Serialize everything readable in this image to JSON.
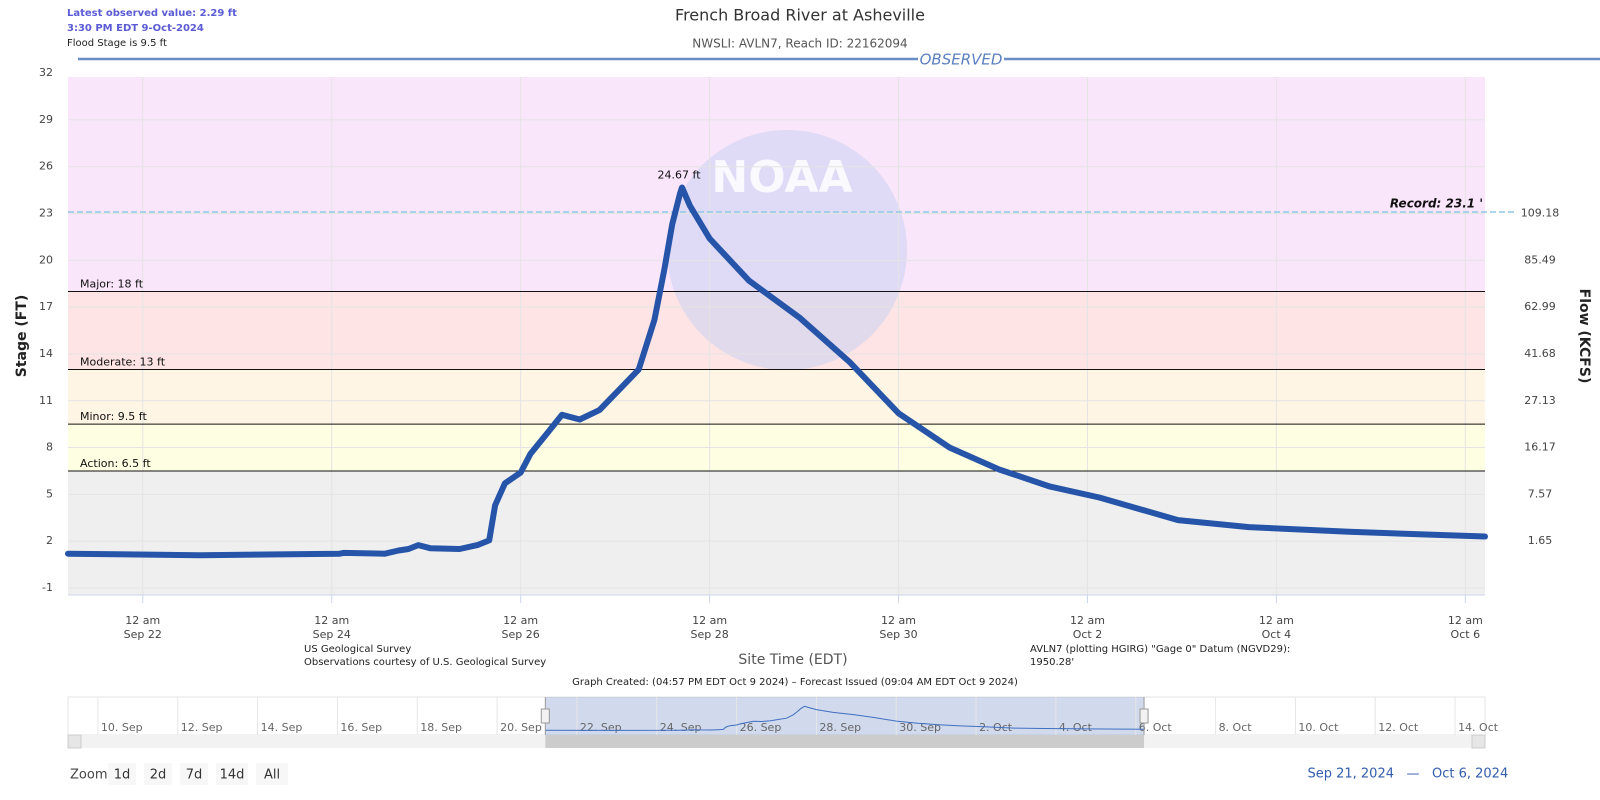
{
  "header": {
    "latest": "Latest observed value: 2.29 ft",
    "latest_time": "3:30 PM EDT 9-Oct-2024",
    "flood_stage": "Flood Stage is 9.5 ft"
  },
  "chart_data": {
    "type": "line",
    "title": "French Broad River at Asheville",
    "subtitle": "NWSLI: AVLN7, Reach ID: 22162094",
    "section_label": "OBSERVED",
    "watermark": "NOAA",
    "y_label": "Stage (FT)",
    "y2_label": "Flow (KCFS)",
    "x_label": "Site Time (EDT)",
    "ylim": [
      -1.45,
      31.75
    ],
    "yticks": [
      -1,
      2,
      5,
      8,
      11,
      14,
      17,
      20,
      23,
      26,
      29,
      32
    ],
    "y2ticks": [
      1.65,
      7.57,
      16.17,
      27.13,
      41.68,
      62.99,
      85.49,
      109.18
    ],
    "y2tick_stage": [
      2,
      5,
      8,
      11,
      14,
      17,
      20,
      23
    ],
    "xlim": [
      "2024-09-21 05:00",
      "2024-10-06 05:00"
    ],
    "xticks": [
      {
        "value": "2024-09-22 00:00",
        "label": "12 am",
        "date": "Sep 22"
      },
      {
        "value": "2024-09-24 00:00",
        "label": "12 am",
        "date": "Sep 24"
      },
      {
        "value": "2024-09-26 00:00",
        "label": "12 am",
        "date": "Sep 26"
      },
      {
        "value": "2024-09-28 00:00",
        "label": "12 am",
        "date": "Sep 28"
      },
      {
        "value": "2024-09-30 00:00",
        "label": "12 am",
        "date": "Sep 30"
      },
      {
        "value": "2024-10-02 00:00",
        "label": "12 am",
        "date": "Oct 2"
      },
      {
        "value": "2024-10-04 00:00",
        "label": "12 am",
        "date": "Oct 4"
      },
      {
        "value": "2024-10-06 00:00",
        "label": "12 am",
        "date": "Oct 6"
      }
    ],
    "grid": true,
    "below_color": "#efefef",
    "flood_levels": [
      {
        "label": "Action: 6.5 ft",
        "value": 6.5,
        "color": "#fefee2"
      },
      {
        "label": "Minor: 9.5 ft",
        "value": 9.5,
        "color": "#fef5e4"
      },
      {
        "label": "Moderate: 13 ft",
        "value": 13,
        "color": "#fee4e4"
      },
      {
        "label": "Major: 18 ft",
        "value": 18,
        "color": "#fae6fb"
      }
    ],
    "record": {
      "label": "Record: 23.1 '",
      "value": 23.1,
      "color": "#8ecae6"
    },
    "x": [
      "2024-09-21 05:00",
      "2024-09-22 14:30",
      "2024-09-24 02:00",
      "2024-09-24 03:00",
      "2024-09-24 13:30",
      "2024-09-24 17:00",
      "2024-09-24 19:30",
      "2024-09-24 22:00",
      "2024-09-25 01:00",
      "2024-09-25 08:30",
      "2024-09-25 13:00",
      "2024-09-25 16:00",
      "2024-09-25 17:30",
      "2024-09-25 20:00",
      "2024-09-26 00:00",
      "2024-09-26 02:30",
      "2024-09-26 07:00",
      "2024-09-26 10:30",
      "2024-09-26 15:00",
      "2024-09-26 20:00",
      "2024-09-27 01:00",
      "2024-09-27 06:00",
      "2024-09-27 10:00",
      "2024-09-27 12:30",
      "2024-09-27 14:30",
      "2024-09-27 16:30",
      "2024-09-27 17:00",
      "2024-09-27 19:00",
      "2024-09-28 00:00",
      "2024-09-28 10:00",
      "2024-09-28 23:00",
      "2024-09-29 11:30",
      "2024-09-30 00:00",
      "2024-09-30 13:00",
      "2024-10-01 01:30",
      "2024-10-01 14:30",
      "2024-10-02 03:00",
      "2024-10-02 23:00",
      "2024-10-03 17:00",
      "2024-10-04 18:30",
      "2024-10-06 05:00"
    ],
    "series": [
      {
        "name": "Observed",
        "color": "#2654a8",
        "values": [
          1.2,
          1.1,
          1.2,
          1.25,
          1.2,
          1.4,
          1.5,
          1.75,
          1.55,
          1.5,
          1.75,
          2.05,
          4.3,
          5.7,
          6.4,
          7.6,
          9.0,
          10.1,
          9.8,
          10.4,
          11.7,
          13.0,
          16.2,
          19.4,
          22.3,
          24.3,
          24.67,
          23.5,
          21.4,
          18.7,
          16.3,
          13.5,
          10.2,
          8.0,
          6.6,
          5.5,
          4.8,
          3.35,
          2.9,
          2.6,
          2.3
        ]
      }
    ],
    "annotations": [
      {
        "text": "24.67 ft",
        "x": "2024-09-27 17:00",
        "y": 24.67
      }
    ],
    "notes": {
      "source1": "US Geological Survey",
      "source2": "Observations courtesy of U.S. Geological Survey",
      "datum1": "AVLN7 (plotting HGIRG) \"Gage 0\" Datum (NGVD29):",
      "datum2": "1950.28'",
      "created": "Graph Created: (04:57 PM EDT Oct 9 2024) – Forecast Issued (09:04 AM EDT Oct 9 2024)"
    },
    "navigator": {
      "xlim": [
        "2024-09-09 06:00",
        "2024-10-14 18:00"
      ],
      "labels": [
        {
          "value": "2024-09-10 00:00",
          "label": "10. Sep"
        },
        {
          "value": "2024-09-12 00:00",
          "label": "12. Sep"
        },
        {
          "value": "2024-09-14 00:00",
          "label": "14. Sep"
        },
        {
          "value": "2024-09-16 00:00",
          "label": "16. Sep"
        },
        {
          "value": "2024-09-18 00:00",
          "label": "18. Sep"
        },
        {
          "value": "2024-09-20 00:00",
          "label": "20. Sep"
        },
        {
          "value": "2024-09-22 00:00",
          "label": "22. Sep"
        },
        {
          "value": "2024-09-24 00:00",
          "label": "24. Sep"
        },
        {
          "value": "2024-09-26 00:00",
          "label": "26. Sep"
        },
        {
          "value": "2024-09-28 00:00",
          "label": "28. Sep"
        },
        {
          "value": "2024-09-30 00:00",
          "label": "30. Sep"
        },
        {
          "value": "2024-10-02 00:00",
          "label": "2. Oct"
        },
        {
          "value": "2024-10-04 00:00",
          "label": "4. Oct"
        },
        {
          "value": "2024-10-06 00:00",
          "label": "6. Oct"
        },
        {
          "value": "2024-10-08 00:00",
          "label": "8. Oct"
        },
        {
          "value": "2024-10-10 00:00",
          "label": "10. Oct"
        },
        {
          "value": "2024-10-12 00:00",
          "label": "12. Oct"
        },
        {
          "value": "2024-10-14 00:00",
          "label": "14. Oct"
        }
      ]
    },
    "zoom": {
      "label": "Zoom",
      "buttons": [
        "1d",
        "2d",
        "7d",
        "14d",
        "All"
      ]
    },
    "range": {
      "from": "Sep 21, 2024",
      "sep": "—",
      "to": "Oct 6, 2024"
    }
  }
}
